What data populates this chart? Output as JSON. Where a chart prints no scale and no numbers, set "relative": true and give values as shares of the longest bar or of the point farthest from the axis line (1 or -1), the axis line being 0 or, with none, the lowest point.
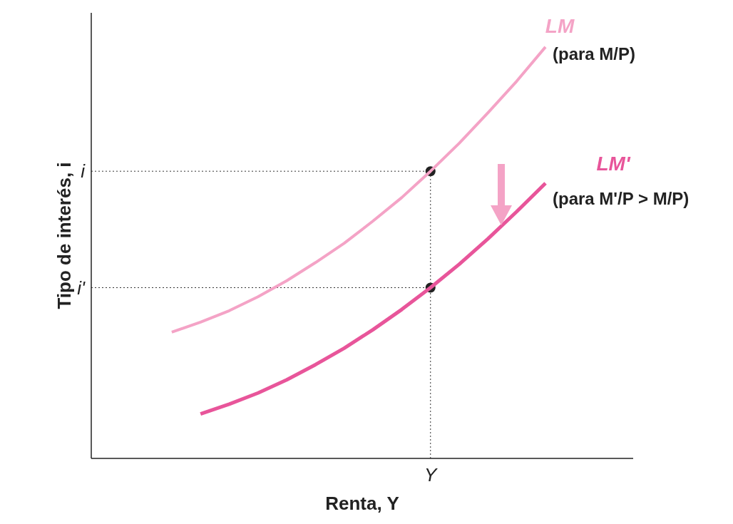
{
  "chart_data": {
    "type": "line",
    "relative": true,
    "xlabel": "Renta, Y",
    "ylabel": "Tipo de interés, i",
    "categories": [
      null,
      null,
      null,
      null,
      null,
      null,
      null,
      null,
      null,
      null,
      null,
      null,
      null,
      null
    ],
    "series": [
      {
        "name": "LM",
        "color": "#f4a3c6",
        "values": [
          0.307,
          0.331,
          0.359,
          0.393,
          0.432,
          0.476,
          0.523,
          0.577,
          0.634,
          0.698,
          0.766,
          0.84,
          0.917,
          1
        ]
      },
      {
        "name": "LM'",
        "color": "#e8559a",
        "values": [
          null,
          0.108,
          0.132,
          0.159,
          0.191,
          0.228,
          0.268,
          0.313,
          0.362,
          0.415,
          0.472,
          0.534,
          0.6,
          0.669
        ]
      }
    ],
    "annotations": [
      "(para M/P)",
      "(para M'/P > M/P)"
    ],
    "ref_lines": [
      {
        "axis": "y",
        "value": 0.698,
        "label": "i",
        "line_style": "dotted",
        "color": "#333333"
      },
      {
        "axis": "y",
        "value": 0.415,
        "label": "i'",
        "line_style": "dotted",
        "color": "#333333"
      },
      {
        "axis": "x",
        "label": "Y",
        "line_style": "dotted",
        "color": "#333333"
      }
    ],
    "legend": false,
    "grid": false,
    "marker": "none",
    "line_style": "solid"
  }
}
